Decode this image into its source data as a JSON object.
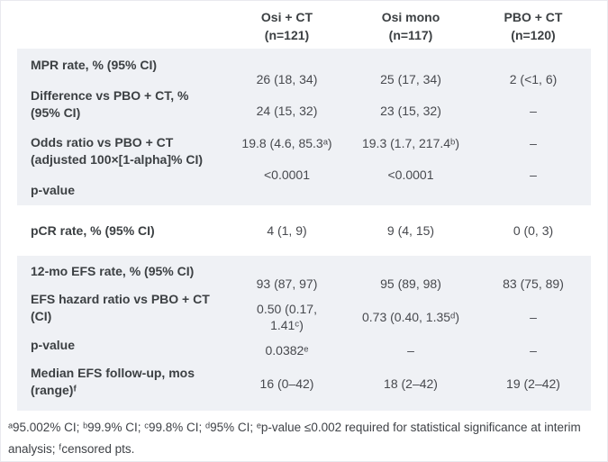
{
  "header": {
    "columns": [
      {
        "title": "Osi + CT",
        "n": "(n=121)"
      },
      {
        "title": "Osi mono",
        "n": "(n=117)"
      },
      {
        "title": "PBO + CT",
        "n": "(n=120)"
      }
    ]
  },
  "sections": [
    {
      "id": "mpr",
      "shaded": true,
      "labels": [
        "MPR rate, % (95% CI)",
        "Difference vs PBO + CT, %\n(95% CI)",
        "Odds ratio vs PBO + CT\n(adjusted 100×[1-alpha]% CI)",
        "p-value"
      ],
      "rows": [
        [
          "26 (18, 34)",
          "25 (17, 34)",
          "2 (<1, 6)"
        ],
        [
          "24 (15, 32)",
          "23 (15, 32)",
          "–"
        ],
        [
          "19.8 (4.6, 85.3ᵃ)",
          "19.3 (1.7, 217.4ᵇ)",
          "–"
        ],
        [
          "<0.0001",
          "<0.0001",
          "–"
        ]
      ]
    },
    {
      "id": "pcr",
      "shaded": false,
      "labels": [
        "pCR rate, % (95% CI)"
      ],
      "rows": [
        [
          "4 (1, 9)",
          "9 (4, 15)",
          "0 (0, 3)"
        ]
      ]
    },
    {
      "id": "efs",
      "shaded": true,
      "labels": [
        "12-mo EFS rate, % (95% CI)",
        "EFS hazard ratio vs PBO + CT\n(CI)",
        "p-value",
        "Median EFS follow-up, mos\n(range)ᶠ"
      ],
      "rows": [
        [
          "93 (87, 97)",
          "95 (89, 98)",
          "83 (75, 89)"
        ],
        [
          "0.50 (0.17,\n1.41ᶜ)",
          "0.73 (0.40, 1.35ᵈ)",
          "–"
        ],
        [
          "0.0382ᵉ",
          "–",
          "–"
        ],
        [
          "16 (0–42)",
          "18 (2–42)",
          "19 (2–42)"
        ]
      ]
    }
  ],
  "footnote": "ᵃ95.002% CI; ᵇ99.9% CI; ᶜ99.8% CI; ᵈ95% CI; ᵉp-value ≤0.002 required for statistical significance at interim analysis; ᶠcensored pts.",
  "colors": {
    "section_shade": "#eff1f5",
    "label_text": "#3c4043",
    "value_text": "#47494e",
    "page_border": "#e9e9ef"
  }
}
